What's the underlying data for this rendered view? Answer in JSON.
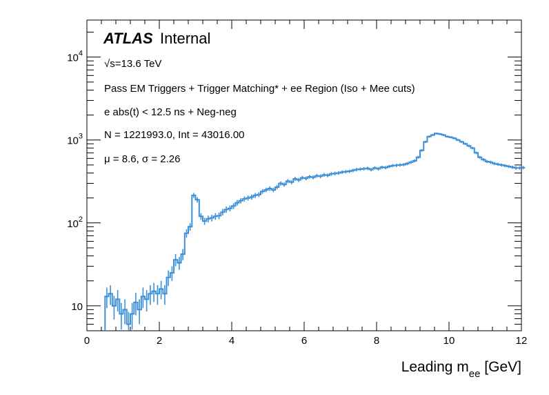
{
  "chart_data": {
    "type": "line",
    "style": "histogram-step-with-error-bars",
    "xlabel": "Leading m",
    "xlabel_sub": "ee",
    "xlabel_unit": " [GeV]",
    "ylabel": "",
    "xlim": [
      0,
      12
    ],
    "ylim": [
      5,
      28000
    ],
    "log_y": true,
    "grid": false,
    "x_ticks": [
      "0",
      "2",
      "4",
      "6",
      "8",
      "10",
      "12"
    ],
    "y_ticks": [
      {
        "value": 10,
        "base": "10",
        "exp": ""
      },
      {
        "value": 100,
        "base": "10",
        "exp": "2"
      },
      {
        "value": 1000,
        "base": "10",
        "exp": "3"
      },
      {
        "value": 10000,
        "base": "10",
        "exp": "4"
      }
    ],
    "series_color": "#3a8fd8",
    "bin_width": 0.1,
    "bin_start": 0.5,
    "values": [
      13,
      14,
      10,
      12,
      8,
      9,
      6,
      8,
      11,
      9,
      13,
      12,
      14,
      15,
      14,
      16,
      14,
      22,
      25,
      36,
      33,
      42,
      75,
      90,
      215,
      190,
      120,
      105,
      112,
      115,
      120,
      122,
      135,
      145,
      150,
      160,
      175,
      185,
      195,
      200,
      205,
      215,
      220,
      240,
      250,
      260,
      250,
      270,
      300,
      290,
      320,
      310,
      340,
      330,
      350,
      345,
      360,
      355,
      370,
      365,
      380,
      375,
      390,
      395,
      400,
      410,
      415,
      420,
      430,
      440,
      445,
      450,
      455,
      440,
      460,
      450,
      470,
      465,
      480,
      490,
      495,
      500,
      505,
      520,
      540,
      560,
      620,
      750,
      950,
      1100,
      1150,
      1200,
      1180,
      1150,
      1100,
      1080,
      1050,
      1000,
      950,
      900,
      850,
      800,
      700,
      620,
      580,
      550,
      540,
      520,
      510,
      500,
      490,
      480,
      470,
      460,
      460,
      465
    ]
  },
  "annotations": {
    "atlas": "ATLAS",
    "internal": "Internal",
    "energy_sqrt": "√",
    "energy": "s=13.6 TeV",
    "selection": "Pass EM Triggers + Trigger Matching* + ee Region (Iso + Mee cuts)",
    "timing": "e abs(t) < 12.5 ns + Neg-neg",
    "counts": "N = 1221993.0, Int  = 43016.00",
    "fit": "μ = 8.6, σ = 2.26"
  }
}
